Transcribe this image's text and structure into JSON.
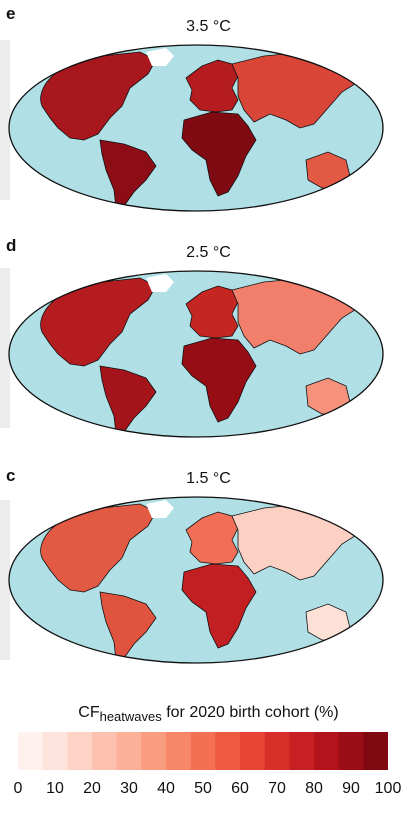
{
  "panels": [
    {
      "letter": "e",
      "title": "3.5 °C",
      "tone": "high"
    },
    {
      "letter": "d",
      "title": "2.5 °C",
      "tone": "mid"
    },
    {
      "letter": "c",
      "title": "1.5 °C",
      "tone": "low"
    }
  ],
  "legend": {
    "title_main": "CF",
    "title_sub": "heatwaves",
    "title_rest": " for 2020 birth cohort (%)",
    "ticks": [
      "0",
      "10",
      "20",
      "30",
      "40",
      "50",
      "60",
      "70",
      "80",
      "90",
      "100"
    ],
    "colors": [
      "#fff1ee",
      "#fee3dc",
      "#fdd3c6",
      "#fcc2af",
      "#fbb097",
      "#f99c7f",
      "#f78768",
      "#f37152",
      "#ee5b41",
      "#e64434",
      "#d92f2a",
      "#c82022",
      "#b3141c",
      "#9b0d17",
      "#7f0811"
    ]
  },
  "colors": {
    "ocean": "#b0dfe6",
    "ice": "#ffffff",
    "outline": "#111111",
    "high": {
      "northam": "#a7171d",
      "southam": "#8c0d16",
      "africa": "#7f0a12",
      "europe": "#b51c1f",
      "asia": "#d94638",
      "australia": "#e25a44"
    },
    "mid": {
      "northam": "#b51c1f",
      "southam": "#a5141b",
      "africa": "#960d15",
      "europe": "#c42622",
      "asia": "#f27f6c",
      "australia": "#f6917c"
    },
    "low": {
      "northam": "#e25a44",
      "southam": "#e0533f",
      "africa": "#c11f21",
      "europe": "#f26f57",
      "asia": "#fcd0c2",
      "australia": "#fde0d6"
    }
  }
}
